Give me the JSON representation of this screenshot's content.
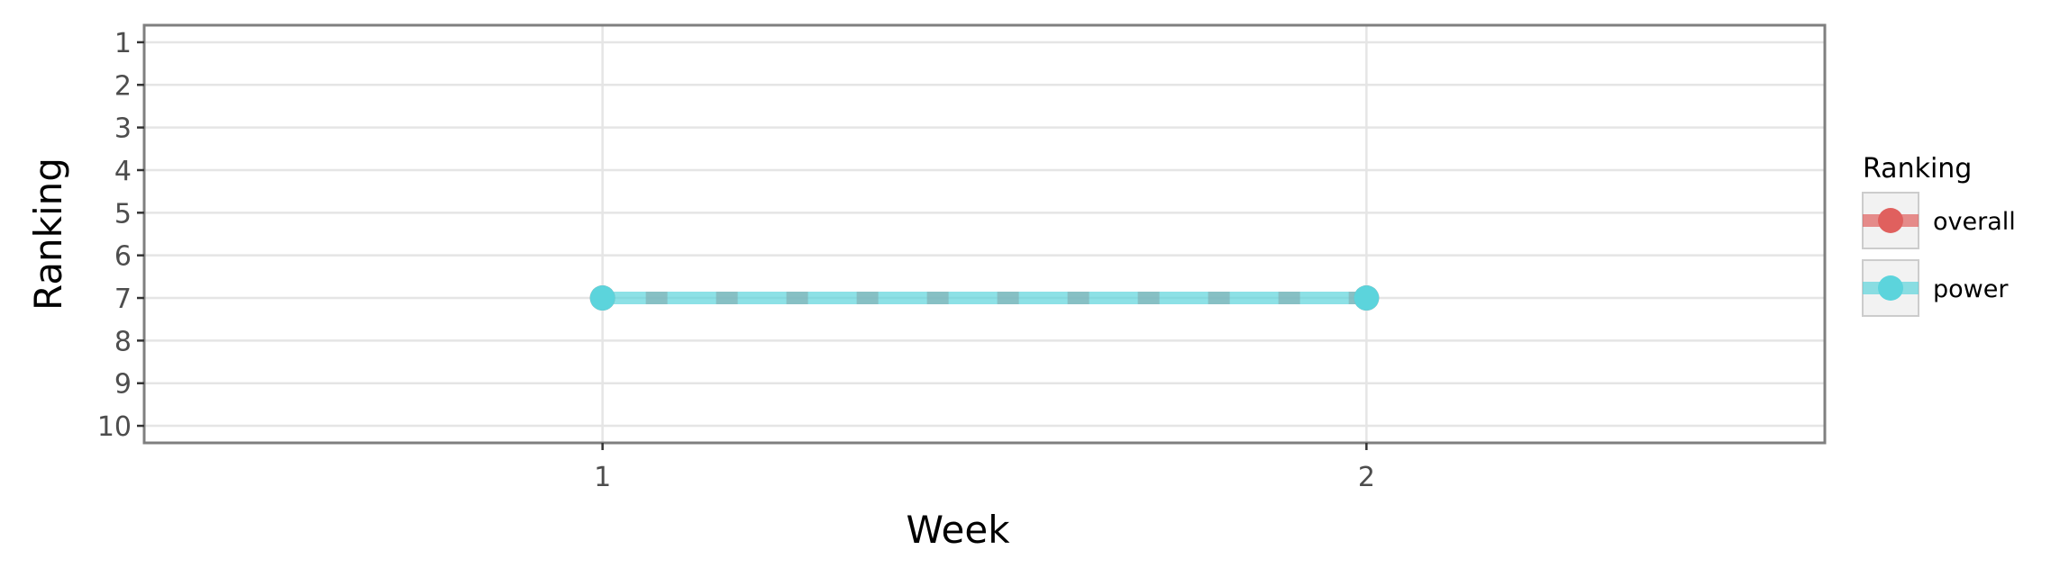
{
  "chart_data": {
    "type": "line",
    "title": "",
    "xlabel": "Week",
    "ylabel": "Ranking",
    "x": [
      1,
      2
    ],
    "x_ticks": [
      "1",
      "2"
    ],
    "xlim": [
      0.4,
      2.6
    ],
    "y_ticks": [
      "1",
      "2",
      "3",
      "4",
      "5",
      "6",
      "7",
      "8",
      "9",
      "10"
    ],
    "ylim": [
      10.4,
      0.6
    ],
    "y_reversed": true,
    "grid": true,
    "legend": {
      "title": "Ranking",
      "position": "right"
    },
    "series": [
      {
        "name": "overall",
        "values": [
          7,
          7
        ],
        "color": "#e0605e",
        "line_style": "dashed"
      },
      {
        "name": "power",
        "values": [
          7,
          7
        ],
        "color": "#5cd4dc",
        "line_style": "solid"
      }
    ]
  }
}
